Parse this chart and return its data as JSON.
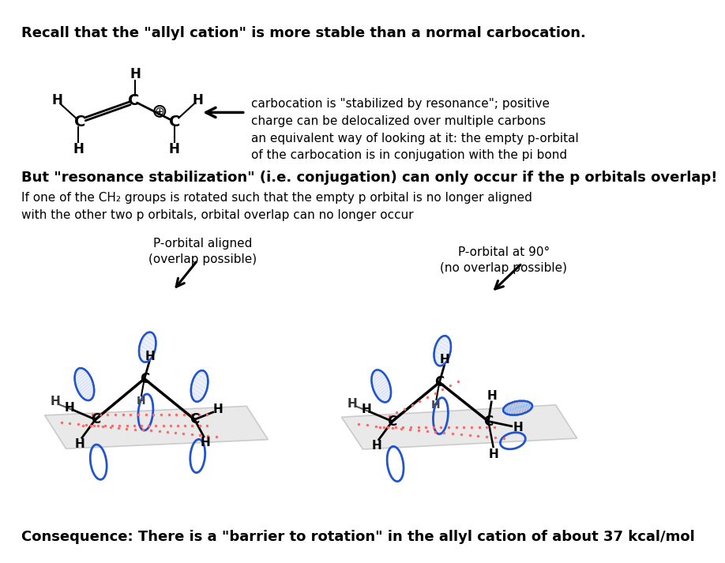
{
  "title1": "Recall that the \"allyl cation\" is more stable than a normal carbocation.",
  "title2": "But \"resonance stabilization\" (i.e. conjugation) can only occur if the p orbitals overlap!",
  "body1": "If one of the CH₂ groups is rotated such that the empty p orbital is no longer aligned\nwith the other two p orbitals, orbital overlap can no longer occur",
  "label_left": "P-orbital aligned\n(overlap possible)",
  "label_right": "P-orbital at 90°\n(no overlap possible)",
  "conclusion": "Consequence: There is a \"barrier to rotation\" in the allyl cation of about 37 kcal/mol",
  "text_right1": "carbocation is \"stabilized by resonance\"; positive\ncharge can be delocalized over multiple carbons",
  "text_right2": "an equivalent way of looking at it: the empty p-orbital\nof the carbocation is in conjugation with the pi bond",
  "bg_color": "#ffffff",
  "text_color": "#000000",
  "blue_color": "#2255cc",
  "red_dot_color": "#ff6666",
  "gray_plane": "#c8c8c8"
}
